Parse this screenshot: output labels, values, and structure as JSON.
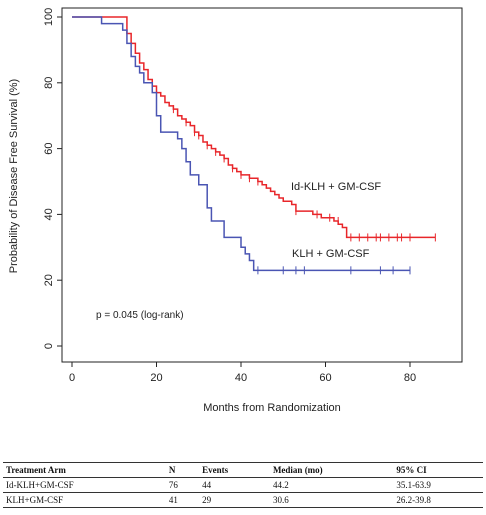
{
  "chart_data": {
    "type": "line",
    "title": "",
    "xlabel": "Months from Randomization",
    "ylabel": "Probability of Disease Free Survival (%)",
    "xlim": [
      0,
      88
    ],
    "ylim": [
      0,
      100
    ],
    "xticks": [
      "0",
      "20",
      "40",
      "60",
      "80"
    ],
    "yticks": [
      "0",
      "20",
      "40",
      "60",
      "80",
      "100"
    ],
    "annotation": "p = 0.045 (log-rank)",
    "series": [
      {
        "name": "Id-KLH + GM-CSF",
        "color": "#e8262a",
        "x": [
          0,
          12,
          13,
          14,
          15,
          16,
          17,
          18,
          19,
          20,
          21,
          22,
          23,
          24,
          25,
          26,
          27,
          28,
          29,
          30,
          31,
          32,
          33,
          34,
          35,
          36,
          37,
          38,
          39,
          40,
          42,
          44,
          45,
          46,
          47,
          48,
          49,
          50,
          52,
          53,
          55,
          57,
          59,
          60,
          62,
          63,
          64,
          65,
          86
        ],
        "y": [
          100,
          100,
          95,
          92,
          89,
          86,
          84,
          81,
          79,
          77,
          76,
          74,
          73,
          72,
          70,
          69,
          68,
          67,
          65,
          64,
          62,
          61,
          60,
          59,
          58,
          57,
          55,
          54,
          53,
          52,
          51,
          50,
          49,
          48,
          47,
          46,
          45,
          44,
          43,
          41,
          41,
          40,
          39,
          39,
          38,
          37,
          36,
          33,
          33
        ],
        "censor_x": [
          24,
          27,
          29,
          30,
          32,
          34,
          36,
          38,
          40,
          42,
          44,
          53,
          58,
          61,
          63,
          66,
          68,
          70,
          72,
          73,
          75,
          77,
          78,
          80,
          86
        ],
        "censor_y": [
          72,
          68,
          65,
          64,
          61,
          59,
          57,
          54,
          52,
          51,
          50,
          41,
          40,
          39,
          38,
          33,
          33,
          33,
          33,
          33,
          33,
          33,
          33,
          33,
          33
        ]
      },
      {
        "name": "KLH + GM-CSF",
        "color": "#4a55b3",
        "x": [
          0,
          7,
          12,
          13,
          14,
          15,
          16,
          17,
          19,
          20,
          21,
          22,
          25,
          26,
          27,
          28,
          30,
          32,
          33,
          36,
          40,
          41,
          42,
          43,
          80
        ],
        "y": [
          100,
          98,
          96,
          92,
          88,
          85,
          83,
          80,
          77,
          70,
          65,
          65,
          63,
          60,
          56,
          52,
          49,
          42,
          38,
          33,
          30,
          28,
          26,
          23,
          23
        ],
        "censor_x": [
          44,
          50,
          53,
          55,
          66,
          73,
          76,
          80
        ],
        "censor_y": [
          23,
          23,
          23,
          23,
          23,
          23,
          23,
          23
        ]
      }
    ]
  },
  "table": {
    "headers": [
      "Treatment Arm",
      "N",
      "Events",
      "Median (mo)",
      "95% CI"
    ],
    "rows": [
      [
        "Id-KLH+GM-CSF",
        "76",
        "44",
        "44.2",
        "35.1-63.9"
      ],
      [
        "KLH+GM-CSF",
        "41",
        "29",
        "30.6",
        "26.2-39.8"
      ]
    ]
  }
}
